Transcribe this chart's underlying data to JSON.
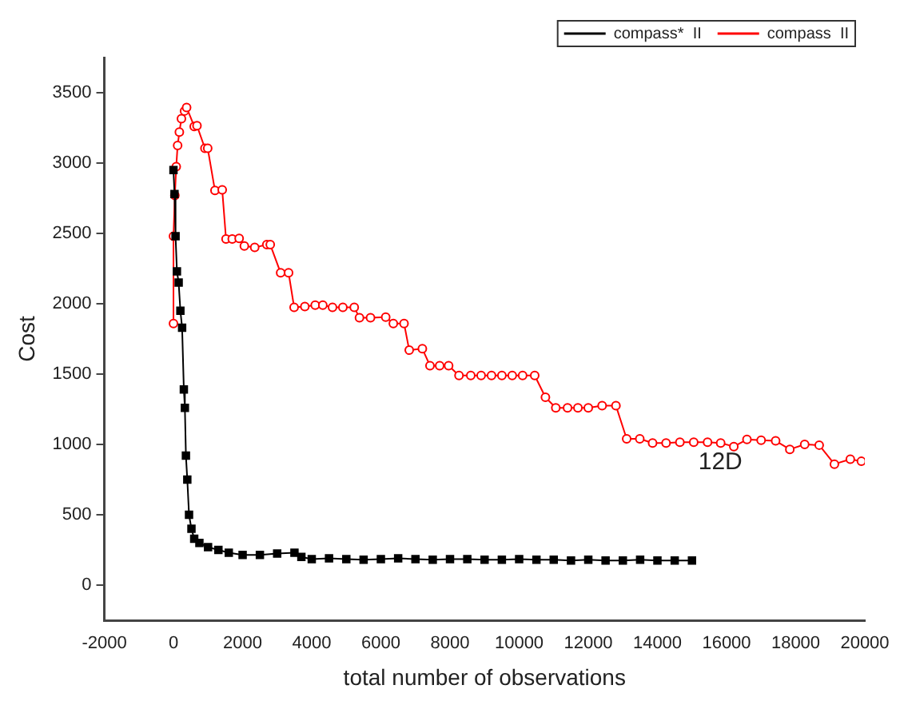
{
  "chart_data": {
    "type": "line",
    "xlabel": "total number of observations",
    "ylabel": "Cost",
    "xlim": [
      -2000,
      20000
    ],
    "ylim": [
      -250,
      3750
    ],
    "xticks": [
      -2000,
      0,
      2000,
      4000,
      6000,
      8000,
      10000,
      12000,
      14000,
      16000,
      18000,
      20000
    ],
    "yticks": [
      0,
      500,
      1000,
      1500,
      2000,
      2500,
      3000,
      3500
    ],
    "grid": false,
    "legend": "top right",
    "line_style": "solid",
    "annotations": [
      "12D"
    ],
    "series": [
      {
        "name": "compass*  II",
        "color": "#000000",
        "marker": "square",
        "x": [
          0,
          30,
          60,
          100,
          150,
          200,
          250,
          300,
          330,
          360,
          400,
          450,
          520,
          600,
          750,
          1000,
          1300,
          1600,
          2000,
          2500,
          3000,
          3500,
          3700,
          4000,
          4500,
          5000,
          5500,
          6000,
          6500,
          7000,
          7500,
          8000,
          8500,
          9000,
          9500,
          10000,
          10500,
          11000,
          11500,
          12000,
          12500,
          13000,
          13500,
          14000,
          14500,
          15000
        ],
        "values": [
          2950,
          2780,
          2480,
          2230,
          2150,
          1950,
          1830,
          1390,
          1260,
          920,
          750,
          500,
          400,
          330,
          300,
          270,
          250,
          230,
          215,
          215,
          225,
          230,
          200,
          185,
          190,
          185,
          180,
          185,
          190,
          185,
          180,
          185,
          185,
          180,
          180,
          185,
          180,
          180,
          175,
          180,
          175,
          175,
          180,
          175,
          175,
          175
        ]
      },
      {
        "name": "compass  II",
        "color": "#ff0000",
        "marker": "circle",
        "x": [
          0,
          0,
          40,
          80,
          120,
          170,
          230,
          320,
          380,
          600,
          680,
          910,
          990,
          1200,
          1410,
          1520,
          1700,
          1900,
          2050,
          2350,
          2700,
          2800,
          3100,
          3330,
          3490,
          3800,
          4100,
          4320,
          4600,
          4900,
          5230,
          5380,
          5700,
          6140,
          6360,
          6670,
          6820,
          7200,
          7420,
          7700,
          7960,
          8260,
          8600,
          8900,
          9200,
          9500,
          9800,
          10100,
          10450,
          10760,
          11060,
          11400,
          11700,
          12000,
          12400,
          12800,
          13110,
          13490,
          13860,
          14250,
          14650,
          15050,
          15450,
          15830,
          16210,
          16590,
          17000,
          17420,
          17830,
          18260,
          18680,
          19120,
          19580,
          19900
        ],
        "values": [
          1860,
          2480,
          2770,
          2975,
          3125,
          3220,
          3315,
          3370,
          3395,
          3260,
          3265,
          3105,
          3105,
          2805,
          2810,
          2460,
          2460,
          2465,
          2410,
          2400,
          2420,
          2420,
          2220,
          2220,
          1975,
          1980,
          1990,
          1990,
          1975,
          1975,
          1975,
          1900,
          1900,
          1905,
          1860,
          1860,
          1670,
          1680,
          1560,
          1560,
          1560,
          1490,
          1490,
          1490,
          1490,
          1490,
          1490,
          1490,
          1490,
          1335,
          1260,
          1260,
          1260,
          1260,
          1275,
          1275,
          1040,
          1040,
          1010,
          1010,
          1015,
          1015,
          1015,
          1010,
          985,
          1035,
          1030,
          1025,
          965,
          1000,
          995,
          860,
          895,
          880
        ]
      }
    ]
  }
}
